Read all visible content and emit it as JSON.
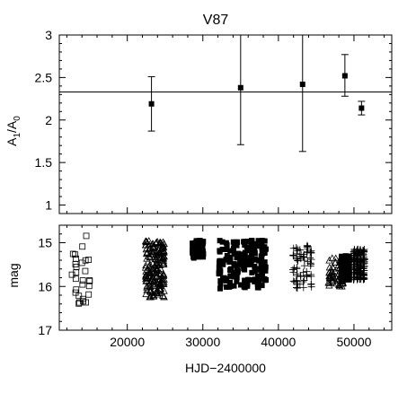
{
  "chart_data": [
    {
      "type": "scatter",
      "title": "V87",
      "ylabel": "A1/A0",
      "ylabel_parts": {
        "base1": "A",
        "sub1": "1",
        "slash": "/",
        "base2": "A",
        "sub2": "0"
      },
      "xlim": [
        11000,
        55000
      ],
      "ylim": [
        0.9,
        3.0
      ],
      "yticks": [
        "1",
        "1.5",
        "2",
        "2.5",
        "3"
      ],
      "ytick_values": [
        1,
        1.5,
        2,
        2.5,
        3
      ],
      "reference_line": 2.33,
      "points": [
        {
          "x": 23200,
          "y": 2.19,
          "err_low": 1.87,
          "err_high": 2.51
        },
        {
          "x": 35000,
          "y": 2.38,
          "err_low": 1.71,
          "err_high": 3.0
        },
        {
          "x": 43200,
          "y": 2.42,
          "err_low": 1.63,
          "err_high": 3.0
        },
        {
          "x": 48800,
          "y": 2.52,
          "err_low": 2.28,
          "err_high": 2.77
        },
        {
          "x": 51000,
          "y": 2.14,
          "err_low": 2.06,
          "err_high": 2.22
        }
      ]
    },
    {
      "type": "scatter",
      "title": "",
      "xlabel": "HJD−2400000",
      "ylabel": "mag",
      "xlim": [
        11000,
        55000
      ],
      "ylim": [
        17.0,
        14.6
      ],
      "inverted_y": true,
      "xticks": [
        "20000",
        "30000",
        "40000",
        "50000"
      ],
      "xtick_values": [
        20000,
        30000,
        40000,
        50000
      ],
      "yticks": [
        "15",
        "16",
        "17"
      ],
      "ytick_values": [
        15,
        16,
        17
      ],
      "series": [
        {
          "marker": "open-square",
          "x_range": [
            12500,
            15200
          ],
          "y_range": [
            14.75,
            16.5
          ],
          "density": "sparse"
        },
        {
          "marker": "open-triangle",
          "x_range": [
            22300,
            25000
          ],
          "y_range": [
            14.95,
            16.25
          ],
          "density": "dense"
        },
        {
          "marker": "filled-square",
          "x_range": [
            28500,
            30200
          ],
          "y_range": [
            14.95,
            15.35
          ],
          "density": "medium"
        },
        {
          "marker": "filled-square",
          "x_range": [
            32000,
            38500
          ],
          "y_range": [
            14.95,
            16.05
          ],
          "density": "dense"
        },
        {
          "marker": "plus",
          "x_range": [
            41800,
            44500
          ],
          "y_range": [
            15.05,
            16.05
          ],
          "density": "medium"
        },
        {
          "marker": "open-triangle",
          "x_range": [
            46500,
            48700
          ],
          "y_range": [
            15.35,
            16.0
          ],
          "density": "medium"
        },
        {
          "marker": "filled-square",
          "x_range": [
            48200,
            49500
          ],
          "y_range": [
            15.3,
            15.85
          ],
          "density": "dense"
        },
        {
          "marker": "plus",
          "x_range": [
            49800,
            51500
          ],
          "y_range": [
            15.15,
            15.85
          ],
          "density": "dense"
        }
      ]
    }
  ]
}
